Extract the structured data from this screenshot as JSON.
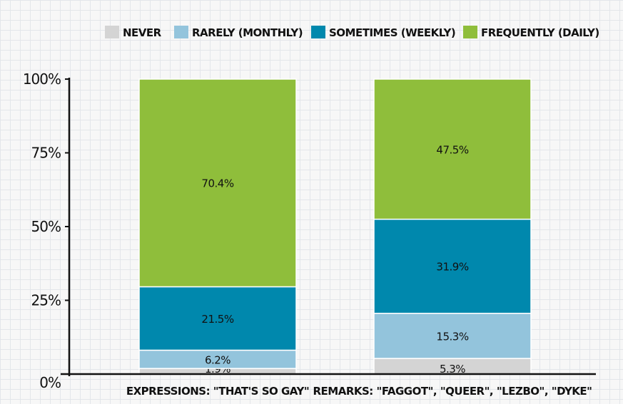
{
  "chart_data": {
    "type": "bar",
    "stacked": true,
    "categories": [
      "EXPRESSIONS: \"THAT'S SO GAY\"",
      "REMARKS: \"FAGGOT\", \"QUEER\", \"LEZBO\", \"DYKE\""
    ],
    "series": [
      {
        "name": "NEVER",
        "color": "#d4d4d4",
        "values": [
          1.9,
          5.3
        ],
        "labels": [
          "1.9%",
          "5.3%"
        ]
      },
      {
        "name": "RARELY (MONTHLY)",
        "color": "#93c4dc",
        "values": [
          6.2,
          15.3
        ],
        "labels": [
          "6.2%",
          "15.3%"
        ]
      },
      {
        "name": "SOMETIMES (WEEKLY)",
        "color": "#0088ad",
        "values": [
          21.5,
          31.9
        ],
        "labels": [
          "21.5%",
          "31.9%"
        ]
      },
      {
        "name": "FREQUENTLY (DAILY)",
        "color": "#8fbe3b",
        "values": [
          70.4,
          47.5
        ],
        "labels": [
          "70.4%",
          "47.5%"
        ]
      }
    ],
    "yticks": [
      0,
      25,
      50,
      75,
      100
    ],
    "ytick_labels": [
      "0%",
      "25%",
      "50%",
      "75%",
      "100%"
    ],
    "ylim": [
      0,
      100
    ],
    "legend_position": "top",
    "grid": false
  }
}
